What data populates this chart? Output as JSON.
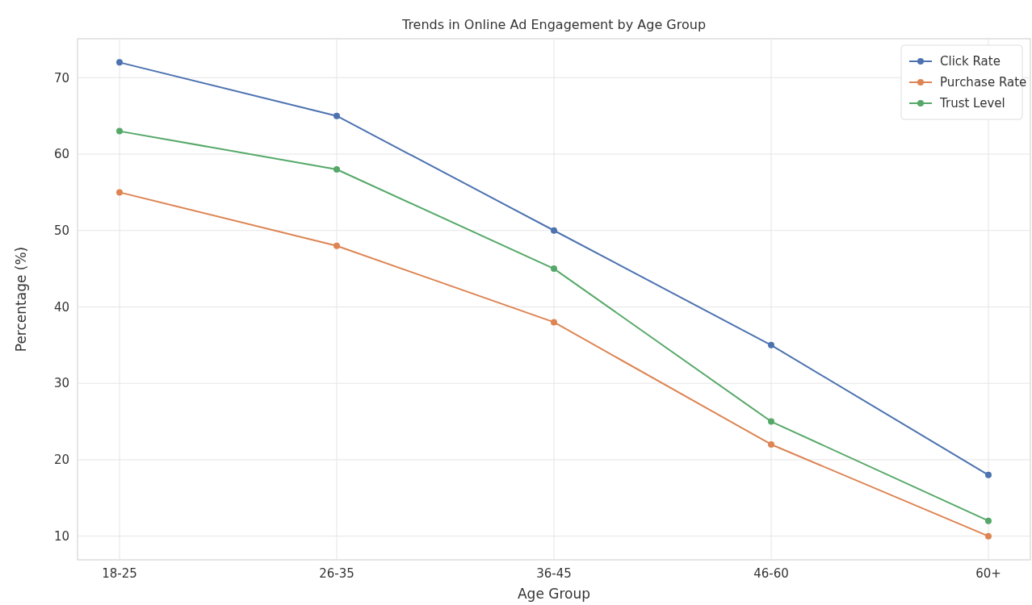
{
  "chart_data": {
    "type": "line",
    "title": "Trends in Online Ad Engagement by Age Group",
    "xlabel": "Age Group",
    "ylabel": "Percentage (%)",
    "categories": [
      "18-25",
      "26-35",
      "36-45",
      "46-60",
      "60+"
    ],
    "series": [
      {
        "name": "Click Rate",
        "color": "#4c72b0",
        "values": [
          72,
          65,
          50,
          35,
          18
        ]
      },
      {
        "name": "Purchase Rate",
        "color": "#dd8452",
        "values": [
          55,
          48,
          38,
          22,
          10
        ]
      },
      {
        "name": "Trust Level",
        "color": "#55a868",
        "values": [
          63,
          58,
          45,
          25,
          12
        ]
      }
    ],
    "ylim": [
      6.9,
      75.1
    ],
    "yticks": [
      10,
      20,
      30,
      40,
      50,
      60,
      70
    ],
    "grid": true,
    "legend": "top right",
    "marker": "circle",
    "line_style": "solid"
  }
}
